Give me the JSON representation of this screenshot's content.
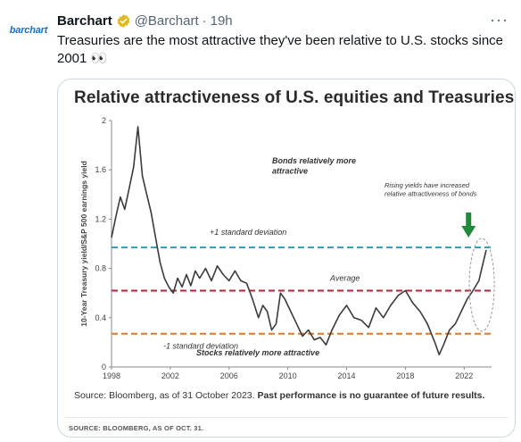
{
  "tweet": {
    "avatar_text": "barchart",
    "display_name": "Barchart",
    "handle": "@Barchart",
    "separator": "·",
    "time": "19h",
    "more_label": "···",
    "text": "Treasuries are the most attractive they've been relative to U.S. stocks since 2001 👀"
  },
  "chart_data": {
    "type": "line",
    "title": "Relative attractiveness of U.S. equities and Treasuries",
    "ylabel": "10-Year Treasury yield/S&P 500 earnings yield",
    "xlabel": "",
    "xlim": [
      1998,
      2023.5
    ],
    "ylim": [
      0,
      2
    ],
    "x_ticks": [
      "1998",
      "2002",
      "2006",
      "2010",
      "2014",
      "2018",
      "2022"
    ],
    "y_ticks": [
      "0",
      "0.4",
      "0.8",
      "1.2",
      "1.6",
      "2"
    ],
    "reference_lines": [
      {
        "label": "+1 standard deviation",
        "value": 0.97,
        "color": "#2a9db5"
      },
      {
        "label": "Average",
        "value": 0.62,
        "color": "#b0283a"
      },
      {
        "label": "-1 standard deviation",
        "value": 0.27,
        "color": "#e07a2b"
      }
    ],
    "annotations": [
      "Bonds relatively more attractive",
      "Rising yields have increased relative attractiveness of bonds",
      "Stocks relatively more attractive"
    ],
    "series": [
      {
        "color": "#3b3b3b",
        "x": [
          1998.0,
          1998.3,
          1998.6,
          1998.9,
          1999.2,
          1999.5,
          1999.8,
          2000.1,
          2000.4,
          2000.7,
          2001.0,
          2001.3,
          2001.6,
          2001.9,
          2002.2,
          2002.5,
          2002.8,
          2003.1,
          2003.4,
          2003.7,
          2004.0,
          2004.4,
          2004.8,
          2005.2,
          2005.6,
          2006.0,
          2006.4,
          2006.8,
          2007.2,
          2007.6,
          2008.0,
          2008.3,
          2008.6,
          2008.9,
          2009.2,
          2009.5,
          2009.8,
          2010.2,
          2010.6,
          2011.0,
          2011.4,
          2011.8,
          2012.2,
          2012.6,
          2013.0,
          2013.5,
          2014.0,
          2014.5,
          2015.0,
          2015.5,
          2016.0,
          2016.5,
          2017.0,
          2017.5,
          2018.0,
          2018.5,
          2019.0,
          2019.5,
          2020.0,
          2020.3,
          2020.6,
          2021.0,
          2021.4,
          2021.8,
          2022.2,
          2022.6,
          2023.0,
          2023.3,
          2023.5
        ],
        "values": [
          1.05,
          1.22,
          1.38,
          1.28,
          1.45,
          1.62,
          1.95,
          1.55,
          1.4,
          1.25,
          1.05,
          0.85,
          0.72,
          0.65,
          0.6,
          0.72,
          0.65,
          0.75,
          0.66,
          0.78,
          0.72,
          0.8,
          0.7,
          0.82,
          0.75,
          0.7,
          0.78,
          0.7,
          0.68,
          0.55,
          0.4,
          0.5,
          0.45,
          0.3,
          0.35,
          0.6,
          0.55,
          0.45,
          0.35,
          0.25,
          0.3,
          0.22,
          0.24,
          0.18,
          0.3,
          0.42,
          0.5,
          0.4,
          0.38,
          0.32,
          0.48,
          0.4,
          0.5,
          0.58,
          0.62,
          0.52,
          0.45,
          0.35,
          0.2,
          0.1,
          0.18,
          0.3,
          0.35,
          0.45,
          0.55,
          0.62,
          0.7,
          0.85,
          0.95
        ]
      }
    ],
    "footnote_prefix": "Source: Bloomberg, as of 31 October 2023. ",
    "footnote_bold": "Past performance is no guarantee of future results.",
    "source_line": "SOURCE: BLOOMBERG, AS OF OCT. 31."
  },
  "colors": {
    "brand": "#1f6fb5",
    "verified": "#e2b719",
    "arrow": "#1f8a3a"
  }
}
